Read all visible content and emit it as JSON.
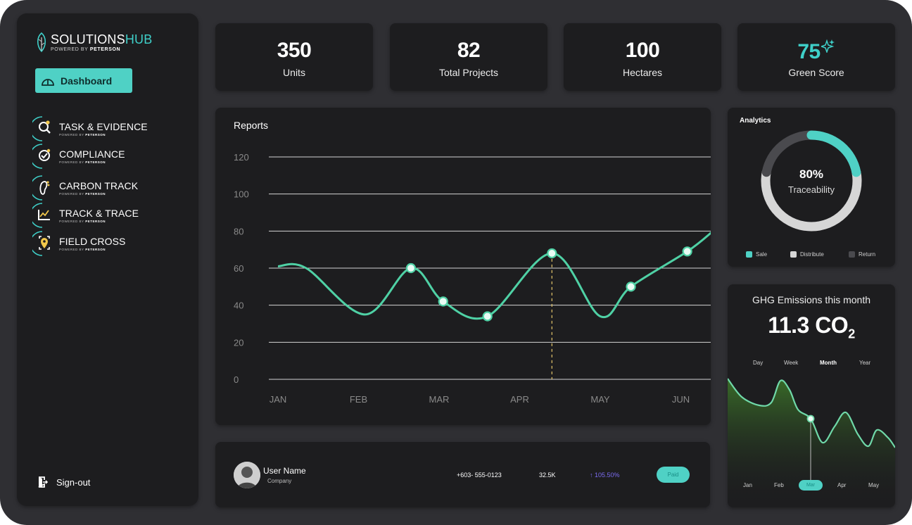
{
  "brand": {
    "name_main": "SOLUTIONS",
    "name_accent": "HUB",
    "powered_prefix": "POWERED BY",
    "powered_brand": "PETERSON"
  },
  "sidebar": {
    "dashboard_label": "Dashboard",
    "items": [
      {
        "label": "TASK & EVIDENCE",
        "icon": "search-check-icon"
      },
      {
        "label": "COMPLIANCE",
        "icon": "check-circle-icon"
      },
      {
        "label": "CARBON TRACK",
        "icon": "footprint-icon"
      },
      {
        "label": "TRACK & TRACE",
        "icon": "trend-chart-icon"
      },
      {
        "label": "FIELD CROSS",
        "icon": "location-pin-icon"
      }
    ],
    "powered_prefix": "POWERED BY",
    "powered_brand": "PETERSON",
    "signout_label": "Sign-out"
  },
  "stats": [
    {
      "value": "350",
      "label": "Units"
    },
    {
      "value": "82",
      "label": "Total Projects"
    },
    {
      "value": "100",
      "label": "Hectares"
    },
    {
      "value": "75",
      "label": "Green Score"
    }
  ],
  "chart_data": {
    "type": "line",
    "title": "Reports",
    "categories": [
      "JAN",
      "FEB",
      "MAR",
      "APR",
      "MAY",
      "JUN"
    ],
    "y_ticks": [
      "120",
      "100",
      "80",
      "60",
      "40",
      "20",
      "0"
    ],
    "ylim": [
      0,
      120
    ],
    "grid": true,
    "points": [
      {
        "x": 0.0,
        "y": 61
      },
      {
        "x": 0.35,
        "y": 60
      },
      {
        "x": 1.08,
        "y": 35
      },
      {
        "x": 1.65,
        "y": 60
      },
      {
        "x": 2.05,
        "y": 42
      },
      {
        "x": 2.6,
        "y": 34
      },
      {
        "x": 3.4,
        "y": 68
      },
      {
        "x": 4.0,
        "y": 34
      },
      {
        "x": 4.38,
        "y": 50
      },
      {
        "x": 5.08,
        "y": 69
      },
      {
        "x": 5.4,
        "y": 80
      }
    ],
    "markers": [
      3,
      4,
      5,
      6,
      8,
      9
    ],
    "highlight_marker": 6,
    "line_color": "#4fd1a5"
  },
  "analytics": {
    "title": "Analytics",
    "percent": "80%",
    "subtitle": "Traceability",
    "segments": [
      {
        "name": "Sale",
        "value": 0.22,
        "color": "#4fd1c5"
      },
      {
        "name": "Distribute",
        "value": 0.56,
        "color": "#d6d6d6"
      },
      {
        "name": "Return",
        "value": 0.22,
        "color": "#4a4a4e"
      }
    ]
  },
  "ghg": {
    "title": "GHG Emissions this month",
    "value": "11.3 CO",
    "subscript": "2",
    "periods": [
      "Day",
      "Week",
      "Month",
      "Year"
    ],
    "active_period": "Month",
    "months": [
      "Jan",
      "Feb",
      "Mar",
      "Apr",
      "May"
    ],
    "active_month": "Mar"
  },
  "user": {
    "name": "User Name",
    "company": "Company",
    "phone": "+603- 555-0123",
    "value": "32.5K",
    "growth": "105.50%",
    "status": "Paid"
  }
}
